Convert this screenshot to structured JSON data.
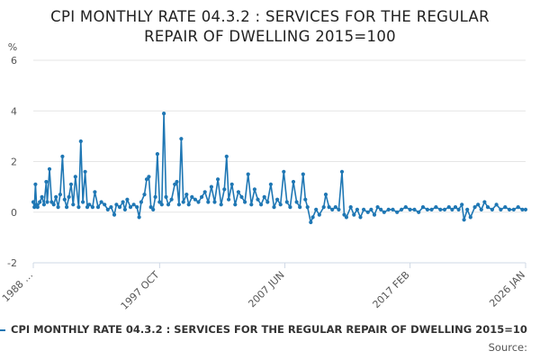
{
  "chart_data": {
    "type": "line",
    "title": "CPI MONTHLY RATE 04.3.2 : SERVICES FOR THE REGULAR REPAIR OF DWELLING 2015=100",
    "title_lines": [
      "CPI MONTHLY RATE 04.3.2 : SERVICES FOR THE REGULAR",
      "REPAIR OF DWELLING 2015=100"
    ],
    "ylabel": "%",
    "xlabel": "",
    "ylim": [
      -2,
      6
    ],
    "yticks": [
      -2,
      0,
      2,
      4,
      6
    ],
    "x_range_years": [
      1988.0,
      2026.0
    ],
    "x_tick_labels": [
      {
        "label": "1988 …",
        "year": 1988.0
      },
      {
        "label": "1997 OCT",
        "year": 1997.75
      },
      {
        "label": "2007 JUN",
        "year": 2007.42
      },
      {
        "label": "2017 FEB",
        "year": 2017.08
      },
      {
        "label": "2026 JAN",
        "year": 2026.0
      }
    ],
    "grid": "horizontal",
    "legend_position": "bottom",
    "series": [
      {
        "name": "CPI MONTHLY RATE 04.3.2 : SERVICES FOR THE REGULAR REPAIR OF DWELLING 2015=10",
        "color": "#1f77b4",
        "points": [
          [
            1988.0,
            0.4
          ],
          [
            1988.08,
            0.2
          ],
          [
            1988.17,
            1.1
          ],
          [
            1988.25,
            0.3
          ],
          [
            1988.33,
            0.2
          ],
          [
            1988.5,
            0.4
          ],
          [
            1988.67,
            0.6
          ],
          [
            1988.83,
            0.3
          ],
          [
            1989.0,
            1.2
          ],
          [
            1989.08,
            0.4
          ],
          [
            1989.25,
            1.7
          ],
          [
            1989.42,
            0.4
          ],
          [
            1989.58,
            0.3
          ],
          [
            1989.75,
            0.6
          ],
          [
            1989.92,
            0.2
          ],
          [
            1990.08,
            0.7
          ],
          [
            1990.25,
            2.2
          ],
          [
            1990.42,
            0.5
          ],
          [
            1990.58,
            0.2
          ],
          [
            1990.75,
            0.6
          ],
          [
            1990.92,
            1.1
          ],
          [
            1991.08,
            0.3
          ],
          [
            1991.25,
            1.4
          ],
          [
            1991.5,
            0.2
          ],
          [
            1991.67,
            2.8
          ],
          [
            1991.83,
            0.4
          ],
          [
            1992.0,
            1.6
          ],
          [
            1992.17,
            0.2
          ],
          [
            1992.33,
            0.3
          ],
          [
            1992.58,
            0.2
          ],
          [
            1992.75,
            0.8
          ],
          [
            1993.0,
            0.2
          ],
          [
            1993.25,
            0.4
          ],
          [
            1993.5,
            0.3
          ],
          [
            1993.75,
            0.1
          ],
          [
            1994.0,
            0.2
          ],
          [
            1994.25,
            -0.1
          ],
          [
            1994.42,
            0.3
          ],
          [
            1994.67,
            0.2
          ],
          [
            1994.92,
            0.4
          ],
          [
            1995.08,
            0.1
          ],
          [
            1995.25,
            0.5
          ],
          [
            1995.5,
            0.2
          ],
          [
            1995.75,
            0.3
          ],
          [
            1996.0,
            0.2
          ],
          [
            1996.17,
            -0.2
          ],
          [
            1996.33,
            0.4
          ],
          [
            1996.58,
            0.7
          ],
          [
            1996.75,
            1.3
          ],
          [
            1996.92,
            1.4
          ],
          [
            1997.08,
            0.2
          ],
          [
            1997.25,
            0.1
          ],
          [
            1997.42,
            0.6
          ],
          [
            1997.58,
            2.3
          ],
          [
            1997.75,
            0.4
          ],
          [
            1997.92,
            0.3
          ],
          [
            1998.08,
            3.9
          ],
          [
            1998.25,
            0.6
          ],
          [
            1998.42,
            0.3
          ],
          [
            1998.67,
            0.5
          ],
          [
            1998.92,
            1.1
          ],
          [
            1999.08,
            1.2
          ],
          [
            1999.25,
            0.3
          ],
          [
            1999.42,
            2.9
          ],
          [
            1999.58,
            0.4
          ],
          [
            1999.83,
            0.7
          ],
          [
            2000.0,
            0.3
          ],
          [
            2000.25,
            0.6
          ],
          [
            2000.5,
            0.5
          ],
          [
            2000.75,
            0.4
          ],
          [
            2001.0,
            0.6
          ],
          [
            2001.25,
            0.8
          ],
          [
            2001.5,
            0.4
          ],
          [
            2001.75,
            1.0
          ],
          [
            2002.0,
            0.4
          ],
          [
            2002.25,
            1.3
          ],
          [
            2002.5,
            0.3
          ],
          [
            2002.75,
            0.9
          ],
          [
            2002.92,
            2.2
          ],
          [
            2003.08,
            0.5
          ],
          [
            2003.33,
            1.1
          ],
          [
            2003.58,
            0.3
          ],
          [
            2003.83,
            0.8
          ],
          [
            2004.08,
            0.6
          ],
          [
            2004.33,
            0.4
          ],
          [
            2004.58,
            1.5
          ],
          [
            2004.83,
            0.3
          ],
          [
            2005.08,
            0.9
          ],
          [
            2005.33,
            0.5
          ],
          [
            2005.58,
            0.3
          ],
          [
            2005.83,
            0.6
          ],
          [
            2006.08,
            0.4
          ],
          [
            2006.33,
            1.1
          ],
          [
            2006.58,
            0.2
          ],
          [
            2006.83,
            0.5
          ],
          [
            2007.08,
            0.3
          ],
          [
            2007.33,
            1.6
          ],
          [
            2007.58,
            0.4
          ],
          [
            2007.83,
            0.2
          ],
          [
            2008.08,
            1.2
          ],
          [
            2008.33,
            0.4
          ],
          [
            2008.58,
            0.2
          ],
          [
            2008.83,
            1.5
          ],
          [
            2009.0,
            0.5
          ],
          [
            2009.17,
            0.2
          ],
          [
            2009.42,
            -0.4
          ],
          [
            2009.58,
            -0.2
          ],
          [
            2009.83,
            0.1
          ],
          [
            2010.08,
            -0.1
          ],
          [
            2010.42,
            0.2
          ],
          [
            2010.58,
            0.7
          ],
          [
            2010.83,
            0.2
          ],
          [
            2011.08,
            0.1
          ],
          [
            2011.33,
            0.2
          ],
          [
            2011.58,
            0.1
          ],
          [
            2011.83,
            1.6
          ],
          [
            2012.0,
            -0.1
          ],
          [
            2012.17,
            -0.2
          ],
          [
            2012.5,
            0.2
          ],
          [
            2012.75,
            -0.1
          ],
          [
            2013.0,
            0.1
          ],
          [
            2013.25,
            -0.2
          ],
          [
            2013.5,
            0.1
          ],
          [
            2013.83,
            0.0
          ],
          [
            2014.08,
            0.1
          ],
          [
            2014.33,
            -0.1
          ],
          [
            2014.58,
            0.2
          ],
          [
            2014.83,
            0.1
          ],
          [
            2015.08,
            0.0
          ],
          [
            2015.42,
            0.1
          ],
          [
            2015.75,
            0.1
          ],
          [
            2016.08,
            0.0
          ],
          [
            2016.42,
            0.1
          ],
          [
            2016.75,
            0.2
          ],
          [
            2017.08,
            0.1
          ],
          [
            2017.42,
            0.1
          ],
          [
            2017.75,
            0.0
          ],
          [
            2018.08,
            0.2
          ],
          [
            2018.42,
            0.1
          ],
          [
            2018.75,
            0.1
          ],
          [
            2019.08,
            0.2
          ],
          [
            2019.42,
            0.1
          ],
          [
            2019.75,
            0.1
          ],
          [
            2020.08,
            0.2
          ],
          [
            2020.33,
            0.1
          ],
          [
            2020.58,
            0.2
          ],
          [
            2020.83,
            0.1
          ],
          [
            2021.08,
            0.3
          ],
          [
            2021.25,
            -0.3
          ],
          [
            2021.5,
            0.1
          ],
          [
            2021.75,
            -0.2
          ],
          [
            2022.08,
            0.2
          ],
          [
            2022.33,
            0.3
          ],
          [
            2022.58,
            0.1
          ],
          [
            2022.83,
            0.4
          ],
          [
            2023.08,
            0.2
          ],
          [
            2023.42,
            0.1
          ],
          [
            2023.75,
            0.3
          ],
          [
            2024.08,
            0.1
          ],
          [
            2024.42,
            0.2
          ],
          [
            2024.75,
            0.1
          ],
          [
            2025.08,
            0.1
          ],
          [
            2025.42,
            0.2
          ],
          [
            2025.75,
            0.1
          ],
          [
            2026.0,
            0.1
          ]
        ]
      }
    ]
  },
  "legend": {
    "label": "CPI MONTHLY RATE 04.3.2 : SERVICES FOR THE REGULAR REPAIR OF DWELLING 2015=10"
  },
  "source": {
    "label": "Source:"
  }
}
